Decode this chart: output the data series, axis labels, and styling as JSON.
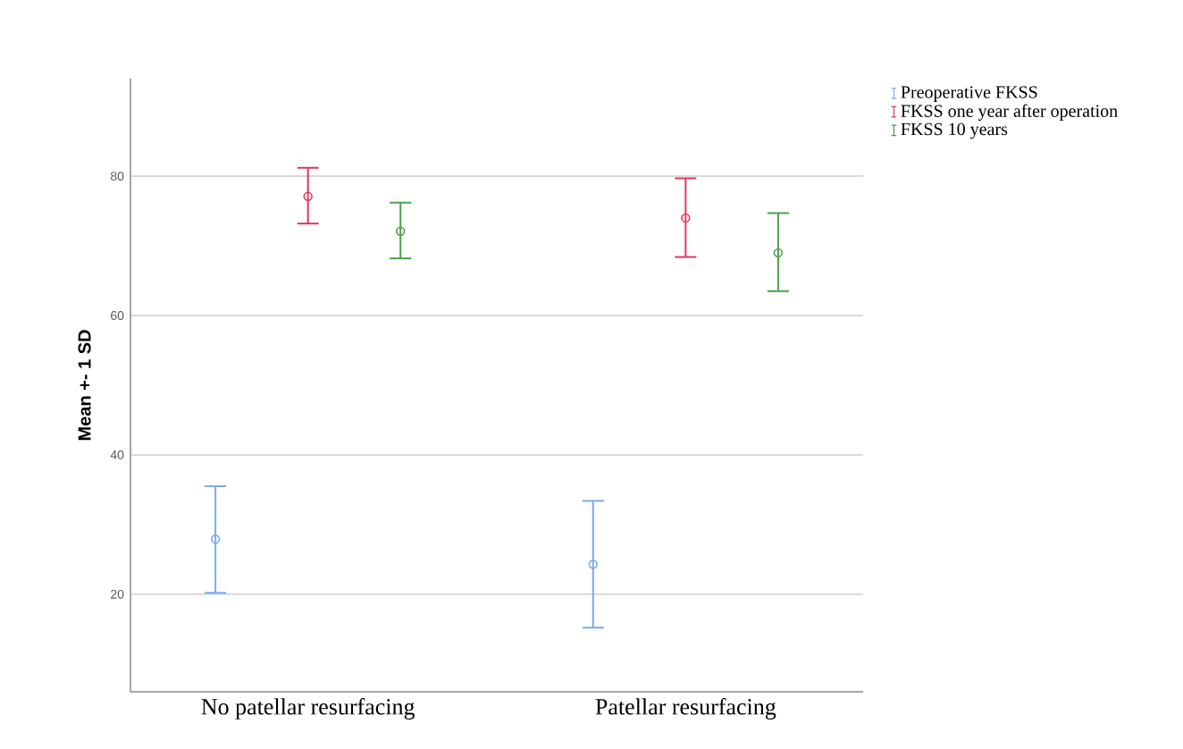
{
  "chart_data": {
    "type": "scatter",
    "ylabel": "Mean +- 1 SD",
    "categories": [
      "No patellar resurfacing",
      "Patellar resurfacing"
    ],
    "series": [
      {
        "name": "Preoperative FKSS",
        "color": "#7aaae8",
        "values": [
          27.9,
          24.3
        ],
        "errors": [
          [
            20.2,
            35.5
          ],
          [
            15.2,
            33.4
          ]
        ]
      },
      {
        "name": "FKSS one year after operation",
        "color": "#e0385e",
        "values": [
          77.1,
          74.0
        ],
        "errors": [
          [
            73.2,
            81.2
          ],
          [
            68.4,
            79.7
          ]
        ]
      },
      {
        "name": "FKSS 10 years",
        "color": "#4aa04a",
        "values": [
          72.1,
          69.0
        ],
        "errors": [
          [
            68.2,
            76.2
          ],
          [
            63.5,
            74.7
          ]
        ]
      }
    ],
    "ylim": [
      6,
      94
    ],
    "yticks": [
      20,
      40,
      60,
      80
    ],
    "grid": "y",
    "legend": "top right",
    "marker": "circle"
  }
}
